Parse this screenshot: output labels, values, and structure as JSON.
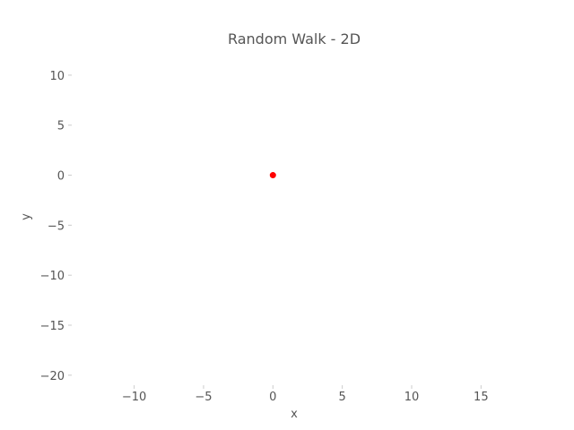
{
  "chart_data": {
    "type": "scatter",
    "title": "Random Walk - 2D",
    "xlabel": "x",
    "ylabel": "y",
    "xlim": [
      -14.5,
      17.5
    ],
    "ylim": [
      -21,
      12.5
    ],
    "xticks": [
      {
        "value": -10,
        "label": "−10"
      },
      {
        "value": -5,
        "label": "−5"
      },
      {
        "value": 0,
        "label": "0"
      },
      {
        "value": 5,
        "label": "5"
      },
      {
        "value": 10,
        "label": "10"
      },
      {
        "value": 15,
        "label": "15"
      }
    ],
    "yticks": [
      {
        "value": 10,
        "label": "10"
      },
      {
        "value": 5,
        "label": "5"
      },
      {
        "value": 0,
        "label": "0"
      },
      {
        "value": -5,
        "label": "−5"
      },
      {
        "value": -10,
        "label": "−10"
      },
      {
        "value": -15,
        "label": "−15"
      },
      {
        "value": -20,
        "label": "−20"
      }
    ],
    "grid": false,
    "points": [
      {
        "x": 0,
        "y": 0,
        "color": "#ff0000"
      }
    ]
  }
}
